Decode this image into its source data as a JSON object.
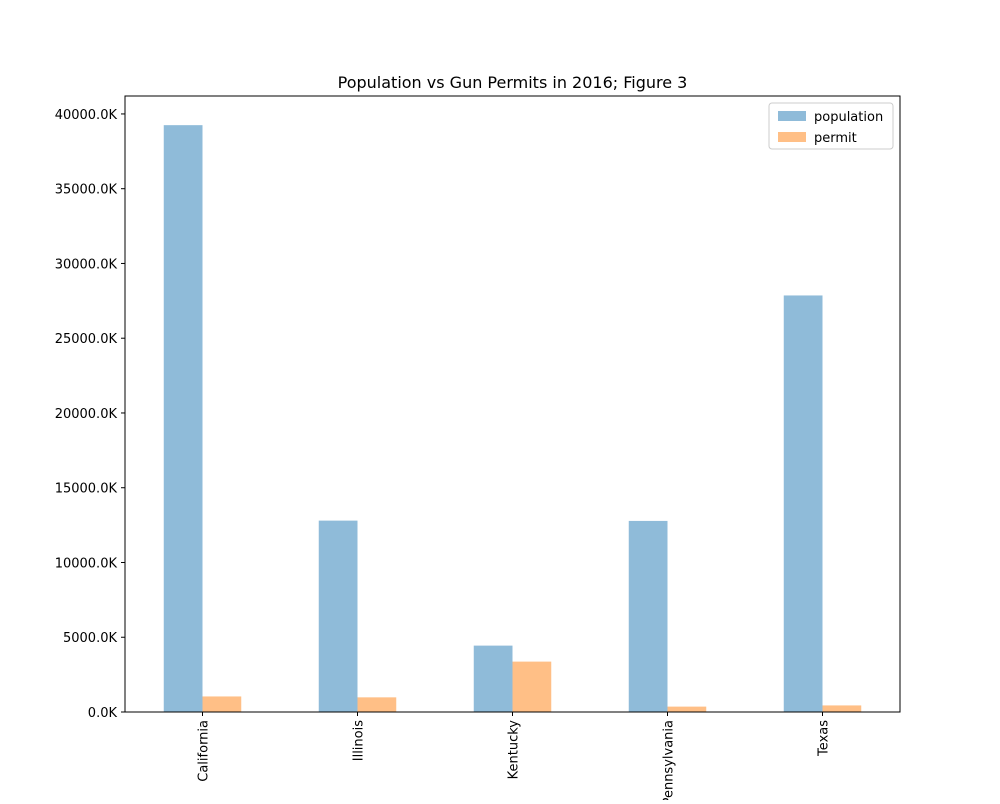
{
  "chart_data": {
    "type": "bar",
    "title": "Population vs Gun Permits in 2016; Figure 3",
    "xlabel": "",
    "ylabel": "",
    "categories": [
      "California",
      "Illinois",
      "Kentucky",
      "Pennsylvania",
      "Texas"
    ],
    "series": [
      {
        "name": "population",
        "values": [
          39250,
          12800,
          4440,
          12780,
          27860
        ],
        "color": "#1f77b4",
        "opacity": 0.5
      },
      {
        "name": "permit",
        "values": [
          1040,
          980,
          3370,
          360,
          440
        ],
        "color": "#ff7f0e",
        "opacity": 0.5
      }
    ],
    "yticks": [
      0,
      5000,
      10000,
      15000,
      20000,
      25000,
      30000,
      35000,
      40000
    ],
    "ytick_labels": [
      "0.0K",
      "5000.0K",
      "10000.0K",
      "15000.0K",
      "20000.0K",
      "25000.0K",
      "30000.0K",
      "35000.0K",
      "40000.0K"
    ],
    "ylim": [
      0,
      41200
    ],
    "grid": false,
    "legend": "top-right",
    "x_tick_rotation": "vertical"
  }
}
